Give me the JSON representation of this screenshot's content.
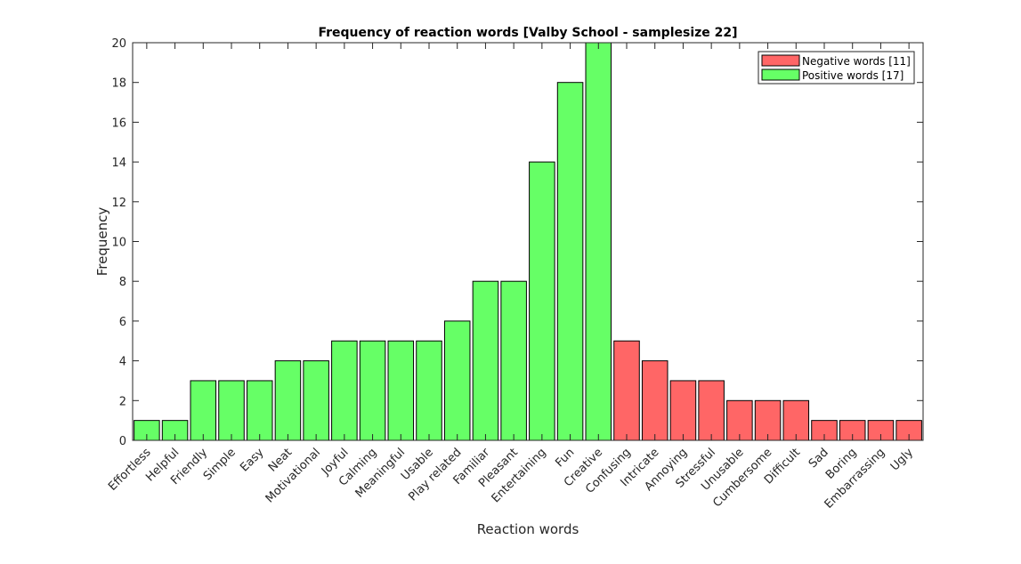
{
  "chart_data": {
    "type": "bar",
    "title": "Frequency of reaction words [Valby School - samplesize 22]",
    "xlabel": "Reaction words",
    "ylabel": "Frequency",
    "ylim": [
      0,
      20
    ],
    "yticks": [
      0,
      2,
      4,
      6,
      8,
      10,
      12,
      14,
      16,
      18,
      20
    ],
    "grid": false,
    "legend_position": "top-right",
    "categories": [
      "Effortless",
      "Helpful",
      "Friendly",
      "Simple",
      "Easy",
      "Neat",
      "Motivational",
      "Joyful",
      "Calming",
      "Meaningful",
      "Usable",
      "Play related",
      "Familiar",
      "Pleasant",
      "Entertaining",
      "Fun",
      "Creative",
      "Confusing",
      "Intricate",
      "Annoying",
      "Stressful",
      "Unusable",
      "Cumbersome",
      "Difficult",
      "Sad",
      "Boring",
      "Embarrassing",
      "Ugly"
    ],
    "values": [
      1,
      1,
      3,
      3,
      3,
      4,
      4,
      5,
      5,
      5,
      5,
      6,
      8,
      8,
      14,
      18,
      20,
      5,
      4,
      3,
      3,
      2,
      2,
      2,
      1,
      1,
      1,
      1
    ],
    "groups": [
      "positive",
      "positive",
      "positive",
      "positive",
      "positive",
      "positive",
      "positive",
      "positive",
      "positive",
      "positive",
      "positive",
      "positive",
      "positive",
      "positive",
      "positive",
      "positive",
      "positive",
      "negative",
      "negative",
      "negative",
      "negative",
      "negative",
      "negative",
      "negative",
      "negative",
      "negative",
      "negative",
      "negative"
    ],
    "legend": [
      {
        "key": "negative",
        "label": "Negative words [11]",
        "color": "#ff6666"
      },
      {
        "key": "positive",
        "label": "Positive words [17]",
        "color": "#66ff66"
      }
    ]
  }
}
